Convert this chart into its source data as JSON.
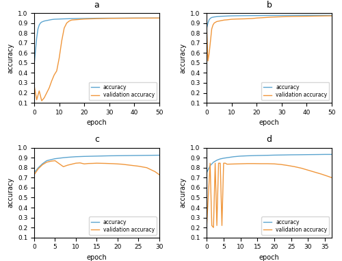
{
  "title_a": "a",
  "title_b": "b",
  "title_c": "c",
  "title_d": "d",
  "xlabel": "epoch",
  "ylabel": "accuracy",
  "legend_acc": "accuracy",
  "legend_val": "validation accuracy",
  "color_acc": "#5ba4cf",
  "color_val": "#f0963a",
  "ylim": [
    0.1,
    1.0
  ],
  "yticks": [
    0.1,
    0.2,
    0.3,
    0.4,
    0.5,
    0.6,
    0.7,
    0.8,
    0.9,
    1.0
  ],
  "a_xlim": [
    0,
    50
  ],
  "a_xticks": [
    0,
    10,
    20,
    30,
    40,
    50
  ],
  "a_acc_x": [
    0,
    0.5,
    1,
    1.5,
    2,
    2.5,
    3,
    4,
    5,
    6,
    7,
    8,
    10,
    12,
    15,
    20,
    25,
    30,
    40,
    50
  ],
  "a_acc_y": [
    0.48,
    0.62,
    0.75,
    0.84,
    0.88,
    0.9,
    0.91,
    0.92,
    0.925,
    0.93,
    0.935,
    0.938,
    0.94,
    0.942,
    0.944,
    0.946,
    0.948,
    0.949,
    0.95,
    0.95
  ],
  "a_val_x": [
    0,
    1,
    2,
    3,
    4,
    5,
    6,
    7,
    8,
    9,
    10,
    11,
    12,
    13,
    14,
    15,
    20,
    25,
    30,
    40,
    50
  ],
  "a_val_y": [
    0.27,
    0.13,
    0.22,
    0.12,
    0.15,
    0.2,
    0.25,
    0.32,
    0.38,
    0.42,
    0.55,
    0.72,
    0.85,
    0.9,
    0.92,
    0.93,
    0.94,
    0.944,
    0.947,
    0.949,
    0.95
  ],
  "b_xlim": [
    0,
    50
  ],
  "b_xticks": [
    0,
    10,
    20,
    30,
    40,
    50
  ],
  "b_acc_x": [
    0,
    0.5,
    1,
    1.5,
    2,
    3,
    4,
    5,
    6,
    7,
    8,
    10,
    12,
    15,
    20,
    25,
    30,
    40,
    50
  ],
  "b_acc_y": [
    0.85,
    0.9,
    0.935,
    0.948,
    0.956,
    0.961,
    0.964,
    0.966,
    0.968,
    0.969,
    0.97,
    0.972,
    0.973,
    0.974,
    0.975,
    0.976,
    0.976,
    0.977,
    0.977
  ],
  "b_val_x": [
    0,
    0.5,
    1,
    1.5,
    2,
    2.5,
    3,
    4,
    5,
    6,
    7,
    8,
    9,
    10,
    12,
    15,
    18,
    20,
    25,
    30,
    35,
    40,
    45,
    50
  ],
  "b_val_y": [
    0.84,
    0.52,
    0.6,
    0.72,
    0.84,
    0.88,
    0.9,
    0.915,
    0.92,
    0.925,
    0.93,
    0.932,
    0.935,
    0.938,
    0.94,
    0.942,
    0.945,
    0.95,
    0.958,
    0.963,
    0.966,
    0.968,
    0.97,
    0.972
  ],
  "c_xlim": [
    0,
    30
  ],
  "c_xticks": [
    0,
    5,
    10,
    15,
    20,
    25,
    30
  ],
  "c_acc_x": [
    0,
    1,
    2,
    3,
    4,
    5,
    6,
    7,
    8,
    9,
    10,
    12,
    14,
    16,
    18,
    20,
    22,
    24,
    26,
    28,
    30
  ],
  "c_acc_y": [
    0.75,
    0.8,
    0.84,
    0.87,
    0.88,
    0.89,
    0.895,
    0.9,
    0.904,
    0.907,
    0.91,
    0.913,
    0.915,
    0.917,
    0.919,
    0.92,
    0.921,
    0.922,
    0.923,
    0.924,
    0.925
  ],
  "c_val_x": [
    0,
    1,
    2,
    3,
    4,
    5,
    6,
    7,
    8,
    9,
    10,
    11,
    12,
    13,
    14,
    15,
    17,
    19,
    21,
    23,
    25,
    27,
    29,
    30
  ],
  "c_val_y": [
    0.73,
    0.79,
    0.83,
    0.855,
    0.865,
    0.87,
    0.84,
    0.81,
    0.825,
    0.835,
    0.845,
    0.848,
    0.838,
    0.842,
    0.843,
    0.845,
    0.843,
    0.84,
    0.835,
    0.825,
    0.815,
    0.8,
    0.76,
    0.73
  ],
  "d_xlim": [
    0,
    37
  ],
  "d_xticks": [
    0,
    5,
    10,
    15,
    20,
    25,
    30,
    35
  ],
  "d_acc_x": [
    0,
    1,
    2,
    3,
    4,
    5,
    6,
    7,
    8,
    9,
    10,
    12,
    15,
    18,
    20,
    22,
    25,
    28,
    30,
    33,
    35,
    37
  ],
  "d_acc_y": [
    0.75,
    0.82,
    0.855,
    0.875,
    0.888,
    0.895,
    0.9,
    0.905,
    0.91,
    0.913,
    0.916,
    0.919,
    0.922,
    0.924,
    0.926,
    0.927,
    0.929,
    0.93,
    0.931,
    0.932,
    0.933,
    0.933
  ],
  "d_val_x": [
    0,
    1,
    1.5,
    2,
    2.5,
    3,
    3.5,
    4,
    4.5,
    5,
    5.5,
    6,
    7,
    8,
    9,
    10,
    11,
    12,
    14,
    16,
    18,
    20,
    22,
    24,
    26,
    28,
    30,
    32,
    34,
    36,
    37
  ],
  "d_val_y": [
    0.22,
    0.845,
    0.22,
    0.2,
    0.845,
    0.22,
    0.845,
    0.845,
    0.22,
    0.845,
    0.845,
    0.835,
    0.836,
    0.837,
    0.838,
    0.839,
    0.84,
    0.841,
    0.841,
    0.84,
    0.84,
    0.838,
    0.832,
    0.822,
    0.81,
    0.795,
    0.775,
    0.755,
    0.735,
    0.712,
    0.7
  ]
}
